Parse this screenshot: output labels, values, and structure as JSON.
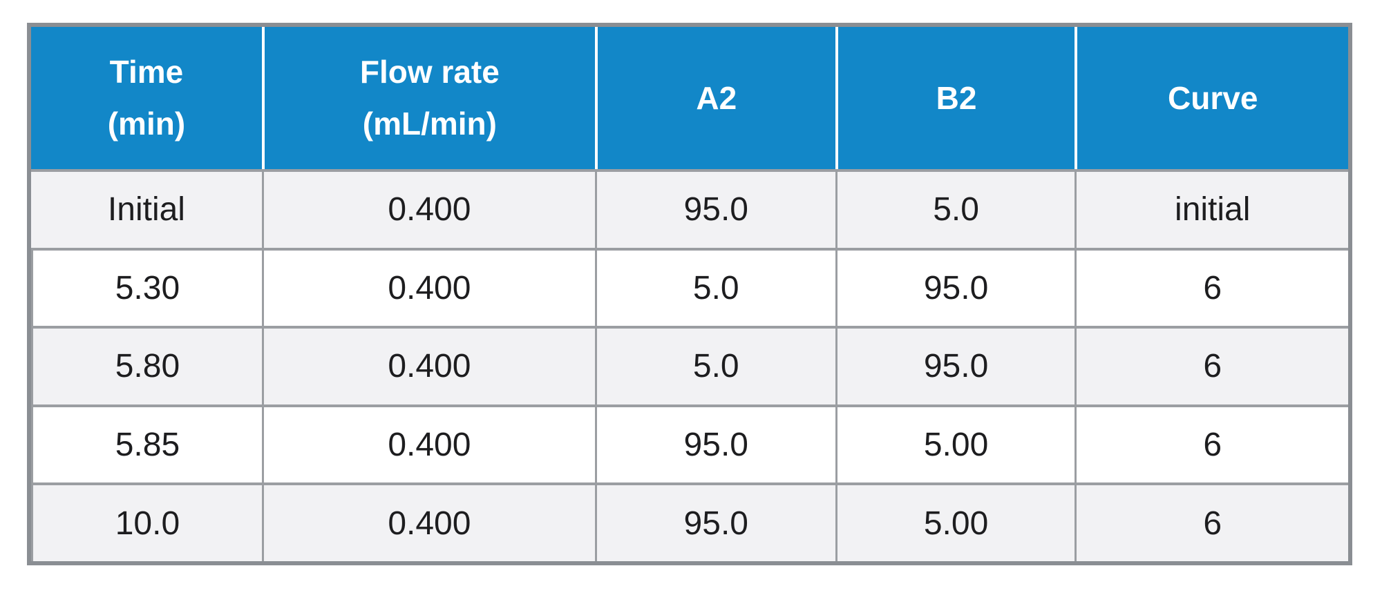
{
  "colors": {
    "header_bg": "#1287c8",
    "header_text": "#ffffff",
    "stripe_row_bg": "#f2f2f4",
    "plain_row_bg": "#ffffff",
    "outer_border": "#8a8e93",
    "grid_line": "#9b9ea2",
    "body_text": "#1d1d1f"
  },
  "table": {
    "headers": [
      {
        "lines": [
          "Time",
          "(min)"
        ]
      },
      {
        "lines": [
          "Flow rate",
          "(mL/min)"
        ]
      },
      {
        "lines": [
          "A2"
        ]
      },
      {
        "lines": [
          "B2"
        ]
      },
      {
        "lines": [
          "Curve"
        ]
      }
    ],
    "rows": [
      [
        "Initial",
        "0.400",
        "95.0",
        "5.0",
        "initial"
      ],
      [
        "5.30",
        "0.400",
        "5.0",
        "95.0",
        "6"
      ],
      [
        "5.80",
        "0.400",
        "5.0",
        "95.0",
        "6"
      ],
      [
        "5.85",
        "0.400",
        "95.0",
        "5.00",
        "6"
      ],
      [
        "10.0",
        "0.400",
        "95.0",
        "5.00",
        "6"
      ]
    ]
  }
}
